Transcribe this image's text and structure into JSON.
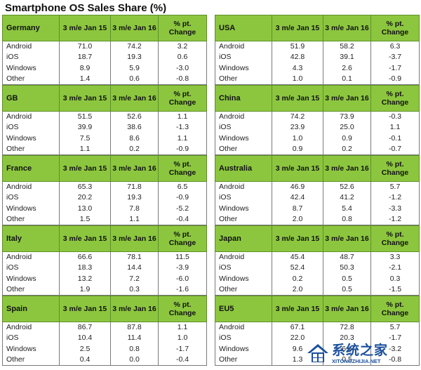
{
  "title": "Smartphone OS Sales Share (%)",
  "headers": [
    "3 m/e Jan 15",
    "3 m/e Jan 16",
    "% pt. Change"
  ],
  "left_column": [
    {
      "country": "Germany",
      "rows": [
        {
          "os": "Android",
          "v1": "71.0",
          "v2": "74.2",
          "chg": "3.2"
        },
        {
          "os": "iOS",
          "v1": "18.7",
          "v2": "19.3",
          "chg": "0.6"
        },
        {
          "os": "Windows",
          "v1": "8.9",
          "v2": "5.9",
          "chg": "-3.0"
        },
        {
          "os": "Other",
          "v1": "1.4",
          "v2": "0.6",
          "chg": "-0.8"
        }
      ]
    },
    {
      "country": "GB",
      "rows": [
        {
          "os": "Android",
          "v1": "51.5",
          "v2": "52.6",
          "chg": "1.1"
        },
        {
          "os": "iOS",
          "v1": "39.9",
          "v2": "38.6",
          "chg": "-1.3"
        },
        {
          "os": "Windows",
          "v1": "7.5",
          "v2": "8.6",
          "chg": "1.1"
        },
        {
          "os": "Other",
          "v1": "1.1",
          "v2": "0.2",
          "chg": "-0.9"
        }
      ]
    },
    {
      "country": "France",
      "rows": [
        {
          "os": "Android",
          "v1": "65.3",
          "v2": "71.8",
          "chg": "6.5"
        },
        {
          "os": "iOS",
          "v1": "20.2",
          "v2": "19.3",
          "chg": "-0.9"
        },
        {
          "os": "Windows",
          "v1": "13.0",
          "v2": "7.8",
          "chg": "-5.2"
        },
        {
          "os": "Other",
          "v1": "1.5",
          "v2": "1.1",
          "chg": "-0.4"
        }
      ]
    },
    {
      "country": "Italy",
      "rows": [
        {
          "os": "Android",
          "v1": "66.6",
          "v2": "78.1",
          "chg": "11.5"
        },
        {
          "os": "iOS",
          "v1": "18.3",
          "v2": "14.4",
          "chg": "-3.9"
        },
        {
          "os": "Windows",
          "v1": "13.2",
          "v2": "7.2",
          "chg": "-6.0"
        },
        {
          "os": "Other",
          "v1": "1.9",
          "v2": "0.3",
          "chg": "-1.6"
        }
      ]
    },
    {
      "country": "Spain",
      "rows": [
        {
          "os": "Android",
          "v1": "86.7",
          "v2": "87.8",
          "chg": "1.1"
        },
        {
          "os": "iOS",
          "v1": "10.4",
          "v2": "11.4",
          "chg": "1.0"
        },
        {
          "os": "Windows",
          "v1": "2.5",
          "v2": "0.8",
          "chg": "-1.7"
        },
        {
          "os": "Other",
          "v1": "0.4",
          "v2": "0.0",
          "chg": "-0.4"
        }
      ]
    }
  ],
  "right_column": [
    {
      "country": "USA",
      "rows": [
        {
          "os": "Android",
          "v1": "51.9",
          "v2": "58.2",
          "chg": "6.3"
        },
        {
          "os": "iOS",
          "v1": "42.8",
          "v2": "39.1",
          "chg": "-3.7"
        },
        {
          "os": "Windows",
          "v1": "4.3",
          "v2": "2.6",
          "chg": "-1.7"
        },
        {
          "os": "Other",
          "v1": "1.0",
          "v2": "0.1",
          "chg": "-0.9"
        }
      ]
    },
    {
      "country": "China",
      "rows": [
        {
          "os": "Android",
          "v1": "74.2",
          "v2": "73.9",
          "chg": "-0.3"
        },
        {
          "os": "iOS",
          "v1": "23.9",
          "v2": "25.0",
          "chg": "1.1"
        },
        {
          "os": "Windows",
          "v1": "1.0",
          "v2": "0.9",
          "chg": "-0.1"
        },
        {
          "os": "Other",
          "v1": "0.9",
          "v2": "0.2",
          "chg": "-0.7"
        }
      ]
    },
    {
      "country": "Australia",
      "rows": [
        {
          "os": "Android",
          "v1": "46.9",
          "v2": "52.6",
          "chg": "5.7"
        },
        {
          "os": "iOS",
          "v1": "42.4",
          "v2": "41.2",
          "chg": "-1.2"
        },
        {
          "os": "Windows",
          "v1": "8.7",
          "v2": "5.4",
          "chg": "-3.3"
        },
        {
          "os": "Other",
          "v1": "2.0",
          "v2": "0.8",
          "chg": "-1.2"
        }
      ]
    },
    {
      "country": "Japan",
      "rows": [
        {
          "os": "Android",
          "v1": "45.4",
          "v2": "48.7",
          "chg": "3.3"
        },
        {
          "os": "iOS",
          "v1": "52.4",
          "v2": "50.3",
          "chg": "-2.1"
        },
        {
          "os": "Windows",
          "v1": "0.2",
          "v2": "0.5",
          "chg": "0.3"
        },
        {
          "os": "Other",
          "v1": "2.0",
          "v2": "0.5",
          "chg": "-1.5"
        }
      ]
    },
    {
      "country": "EU5",
      "rows": [
        {
          "os": "Android",
          "v1": "67.1",
          "v2": "72.8",
          "chg": "5.7"
        },
        {
          "os": "iOS",
          "v1": "22.0",
          "v2": "20.3",
          "chg": "-1.7"
        },
        {
          "os": "Windows",
          "v1": "9.6",
          "v2": "6.4",
          "chg": "-3.2"
        },
        {
          "os": "Other",
          "v1": "1.3",
          "v2": "0.5",
          "chg": "-0.8"
        }
      ]
    }
  ],
  "watermark": {
    "text": "系统之家",
    "url": "XITONGZHIJIA.NET",
    "icon": "house-logo-icon",
    "color": "#1a4f9c"
  },
  "colors": {
    "header_green": "#8cc63f",
    "border": "#7a7a7a"
  }
}
